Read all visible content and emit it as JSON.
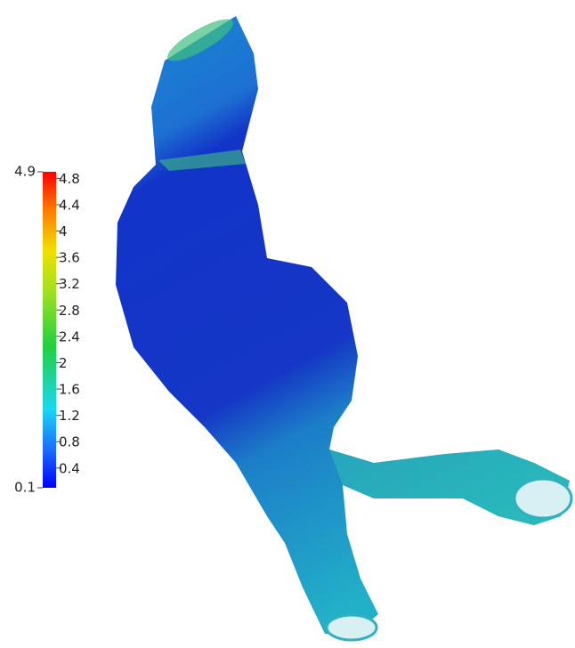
{
  "chart_data": {
    "type": "colorbar",
    "ylim": [
      0.1,
      4.9
    ],
    "yticks": [
      0.4,
      0.8,
      1.2,
      1.6,
      2,
      2.4,
      2.8,
      3.2,
      3.6,
      4,
      4.4,
      4.8
    ]
  }
}
